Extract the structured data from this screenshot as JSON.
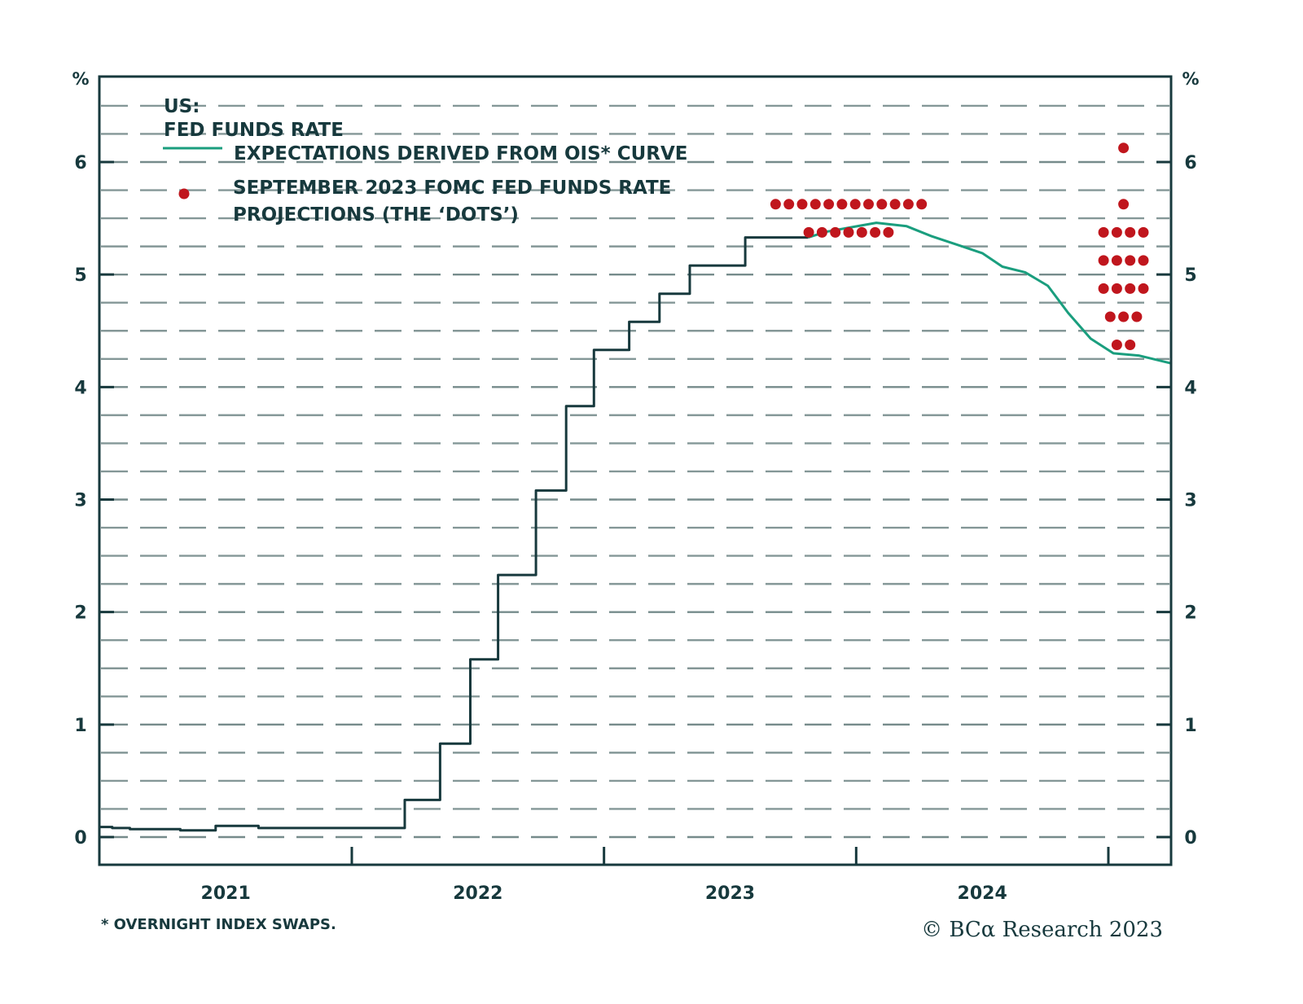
{
  "chart_data": {
    "type": "line",
    "title": "US:",
    "subtitle": "FED FUNDS RATE",
    "ylabel_left": "%",
    "ylabel_right": "%",
    "ylim": [
      -0.25,
      6.75
    ],
    "yticks": [
      0,
      1,
      2,
      3,
      4,
      5,
      6
    ],
    "ytick_labels": [
      "0",
      "1",
      "2",
      "3",
      "4",
      "5",
      "6"
    ],
    "ygrid_step": 0.25,
    "grid": "horizontal-dashed",
    "xlim": [
      2021.0,
      2025.25
    ],
    "xtick_positions": [
      2022.0,
      2023.0,
      2024.0,
      2025.0
    ],
    "xcategory_labels": [
      {
        "label": "2021",
        "center": 2021.5
      },
      {
        "label": "2022",
        "center": 2022.5
      },
      {
        "label": "2023",
        "center": 2023.5
      },
      {
        "label": "2024",
        "center": 2024.5
      }
    ],
    "legend": {
      "placement": "top-left",
      "entries": [
        {
          "label": "EXPECTATIONS DERIVED FROM OIS* CURVE",
          "marker": "line",
          "color": "#1a9e7e"
        },
        {
          "label_line1": "SEPTEMBER 2023 FOMC FED FUNDS RATE",
          "label_line2": "PROJECTIONS (THE ‘DOTS’)",
          "marker": "dot",
          "color": "#c0161d"
        }
      ]
    },
    "series": [
      {
        "name": "Fed funds rate",
        "style": "step",
        "color": "#17393d",
        "points": [
          [
            2021.0,
            0.09
          ],
          [
            2021.05,
            0.08
          ],
          [
            2021.12,
            0.07
          ],
          [
            2021.3,
            0.07
          ],
          [
            2021.32,
            0.06
          ],
          [
            2021.45,
            0.06
          ],
          [
            2021.46,
            0.1
          ],
          [
            2021.62,
            0.1
          ],
          [
            2021.63,
            0.08
          ],
          [
            2022.2,
            0.08
          ],
          [
            2022.21,
            0.33
          ],
          [
            2022.34,
            0.33
          ],
          [
            2022.35,
            0.83
          ],
          [
            2022.46,
            0.83
          ],
          [
            2022.47,
            1.58
          ],
          [
            2022.57,
            1.58
          ],
          [
            2022.58,
            2.33
          ],
          [
            2022.72,
            2.33
          ],
          [
            2022.73,
            3.08
          ],
          [
            2022.84,
            3.08
          ],
          [
            2022.85,
            3.83
          ],
          [
            2022.95,
            3.83
          ],
          [
            2022.96,
            4.33
          ],
          [
            2023.09,
            4.33
          ],
          [
            2023.1,
            4.58
          ],
          [
            2023.21,
            4.58
          ],
          [
            2023.22,
            4.83
          ],
          [
            2023.33,
            4.83
          ],
          [
            2023.34,
            5.08
          ],
          [
            2023.55,
            5.08
          ],
          [
            2023.56,
            5.33
          ],
          [
            2023.81,
            5.33
          ]
        ]
      },
      {
        "name": "Expectations derived from OIS curve",
        "style": "line",
        "color": "#1a9e7e",
        "points": [
          [
            2023.81,
            5.33
          ],
          [
            2023.88,
            5.38
          ],
          [
            2023.98,
            5.42
          ],
          [
            2024.08,
            5.46
          ],
          [
            2024.2,
            5.43
          ],
          [
            2024.3,
            5.34
          ],
          [
            2024.42,
            5.25
          ],
          [
            2024.5,
            5.19
          ],
          [
            2024.58,
            5.07
          ],
          [
            2024.67,
            5.02
          ],
          [
            2024.76,
            4.9
          ],
          [
            2024.84,
            4.66
          ],
          [
            2024.93,
            4.43
          ],
          [
            2025.02,
            4.3
          ],
          [
            2025.12,
            4.28
          ],
          [
            2025.25,
            4.21
          ]
        ]
      }
    ],
    "dots": {
      "name": "September 2023 FOMC fed funds rate projections",
      "color": "#c0161d",
      "groups": [
        {
          "period": "end-2023",
          "center": 2023.97,
          "levels": [
            {
              "rate": 5.625,
              "count": 12
            },
            {
              "rate": 5.375,
              "count": 7
            }
          ]
        },
        {
          "period": "end-2024",
          "center": 2025.06,
          "levels": [
            {
              "rate": 6.125,
              "count": 1
            },
            {
              "rate": 5.625,
              "count": 1
            },
            {
              "rate": 5.375,
              "count": 4
            },
            {
              "rate": 5.125,
              "count": 4
            },
            {
              "rate": 4.875,
              "count": 4
            },
            {
              "rate": 4.625,
              "count": 3
            },
            {
              "rate": 4.375,
              "count": 2
            }
          ]
        }
      ]
    },
    "annotations": {
      "footnote": "* OVERNIGHT INDEX SWAPS.",
      "credit": "© BCα Research 2023"
    }
  }
}
